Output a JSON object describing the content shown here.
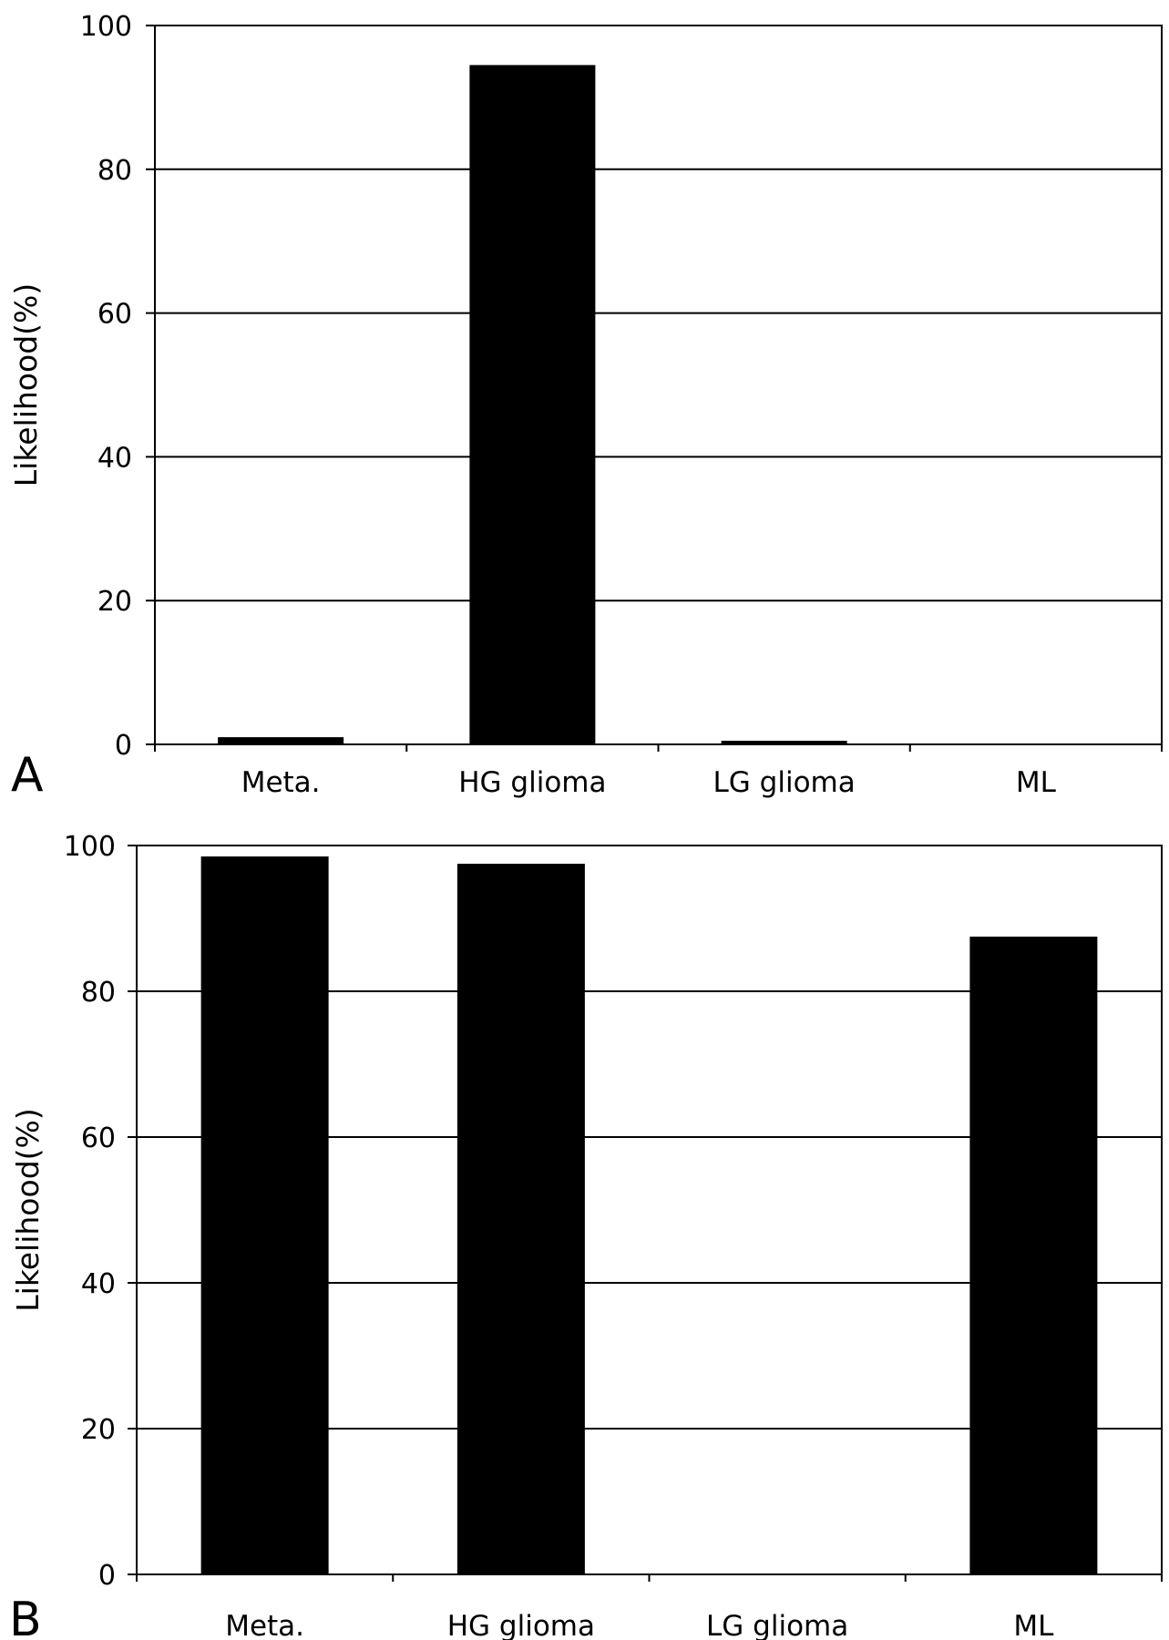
{
  "chart_data": [
    {
      "panel_label": "A",
      "type": "bar",
      "categories": [
        "Meta.",
        "HG glioma",
        "LG glioma",
        "ML"
      ],
      "values": [
        1,
        94.5,
        0.5,
        0
      ],
      "ylabel": "Likelihood(%)",
      "ylim": [
        0,
        100
      ],
      "yticks": [
        0,
        20,
        40,
        60,
        80,
        100
      ],
      "grid": true,
      "bar_color": "#000000"
    },
    {
      "panel_label": "B",
      "type": "bar",
      "categories": [
        "Meta.",
        "HG glioma",
        "LG glioma",
        "ML"
      ],
      "values": [
        98.5,
        97.5,
        0,
        87.5
      ],
      "ylabel": "Likelihood(%)",
      "ylim": [
        0,
        100
      ],
      "yticks": [
        0,
        20,
        40,
        60,
        80,
        100
      ],
      "grid": true,
      "bar_color": "#000000"
    }
  ]
}
